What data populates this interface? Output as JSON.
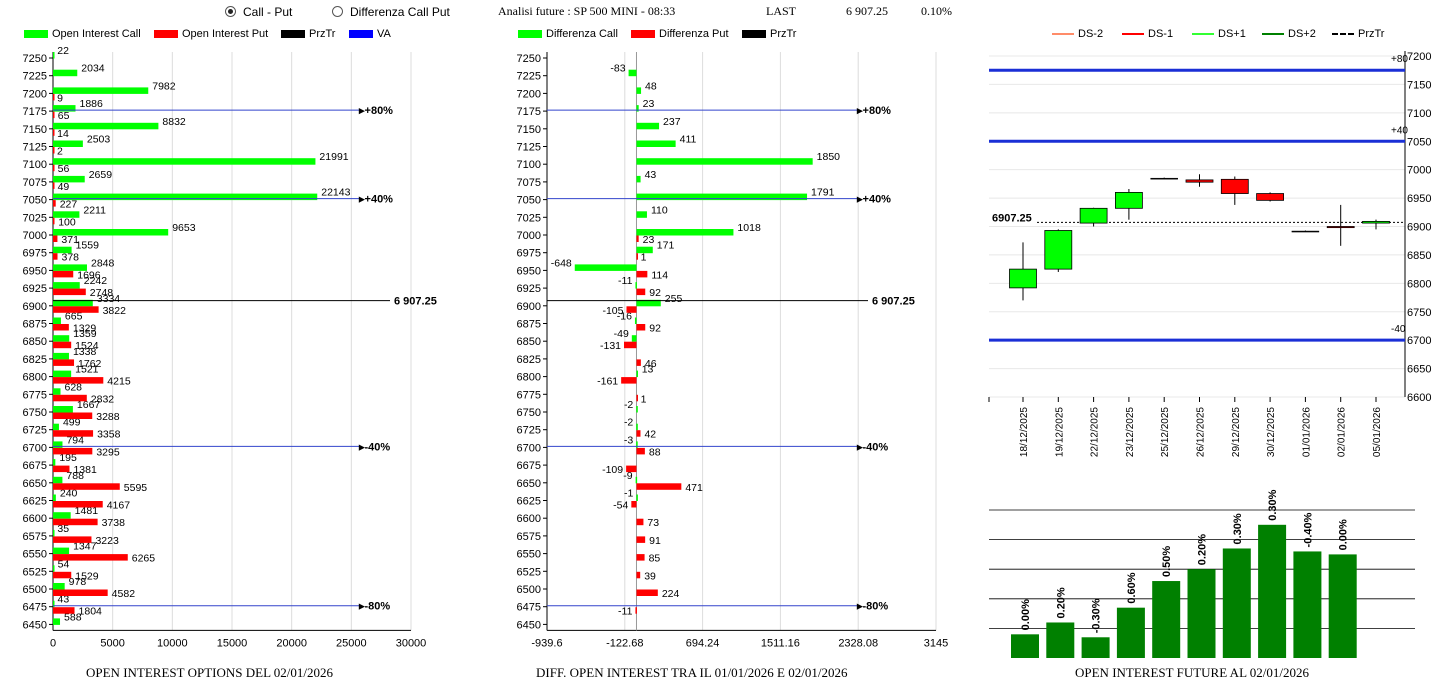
{
  "header": {
    "radio_call_put": "Call - Put",
    "radio_diff": "Differenza Call Put",
    "title": "Analisi future : SP 500 MINI - 08:33",
    "last_label": "LAST",
    "last_value": "6 907.25",
    "change": "0.10%"
  },
  "chart1": {
    "legend": [
      {
        "label": "Open Interest Call",
        "color": "#00ff00"
      },
      {
        "label": "Open Interest Put",
        "color": "#ff0000"
      },
      {
        "label": "PrzTr",
        "color": "#000000"
      },
      {
        "label": "VA",
        "color": "#0000ff"
      }
    ],
    "footer": "OPEN INTEREST OPTIONS DEL 02/01/2026"
  },
  "chart2": {
    "legend": [
      {
        "label": "Differenza Call",
        "color": "#00ff00"
      },
      {
        "label": "Differenza Put",
        "color": "#ff0000"
      },
      {
        "label": "PrzTr",
        "color": "#000000"
      }
    ],
    "footer": "DIFF. OPEN INTEREST TRA IL 01/01/2026 E 02/01/2026"
  },
  "chart3": {
    "legend": [
      {
        "label": "DS-2",
        "color": "#ff8c69",
        "dash": false
      },
      {
        "label": "DS-1",
        "color": "#ff0000",
        "dash": false
      },
      {
        "label": "DS+1",
        "color": "#33ff33",
        "dash": false
      },
      {
        "label": "DS+2",
        "color": "#008000",
        "dash": false
      },
      {
        "label": "PrzTr",
        "color": "#000000",
        "dash": true
      }
    ]
  },
  "chart4": {
    "footer": "OPEN INTEREST FUTURE AL 02/01/2026"
  },
  "chart_data": [
    {
      "type": "bar",
      "title": "OPEN INTEREST OPTIONS DEL 02/01/2026",
      "categories": [
        7250,
        7225,
        7200,
        7175,
        7150,
        7125,
        7100,
        7075,
        7050,
        7025,
        7000,
        6975,
        6950,
        6925,
        6900,
        6875,
        6850,
        6825,
        6800,
        6775,
        6750,
        6725,
        6700,
        6675,
        6650,
        6625,
        6600,
        6575,
        6550,
        6525,
        6500,
        6475,
        6450
      ],
      "series": [
        {
          "name": "Open Interest Call",
          "values": [
            22,
            2034,
            7982,
            1886,
            8832,
            2503,
            21991,
            2659,
            22143,
            2211,
            9653,
            1559,
            2848,
            2242,
            3334,
            665,
            1359,
            1338,
            1521,
            628,
            1667,
            499,
            794,
            195,
            788,
            240,
            1481,
            35,
            1347,
            54,
            978,
            43,
            588
          ]
        },
        {
          "name": "Open Interest Put",
          "values": [
            null,
            null,
            9,
            65,
            14,
            2,
            56,
            49,
            227,
            100,
            371,
            378,
            1696,
            2748,
            3822,
            1329,
            1524,
            1762,
            4215,
            2832,
            3288,
            3358,
            3295,
            1381,
            5595,
            4167,
            3738,
            3223,
            6265,
            1529,
            4582,
            1804,
            null
          ]
        }
      ],
      "xlim": [
        0,
        30000
      ],
      "xticks": [
        "0",
        "5000",
        "10000",
        "15000",
        "20000",
        "25000",
        "30000"
      ],
      "markers": [
        {
          "strike": 7175,
          "label": "+80%"
        },
        {
          "strike": 7050,
          "label": "+40%"
        },
        {
          "strike": 6700,
          "label": "-40%"
        },
        {
          "strike": 6475,
          "label": "-80%"
        }
      ],
      "last_price": {
        "value": 6907.25,
        "label": "6 907.25"
      }
    },
    {
      "type": "bar",
      "title": "DIFF. OPEN INTEREST TRA IL 01/01/2026 E 02/01/2026",
      "categories": [
        7250,
        7225,
        7200,
        7175,
        7150,
        7125,
        7100,
        7075,
        7050,
        7025,
        7000,
        6975,
        6950,
        6925,
        6900,
        6875,
        6850,
        6825,
        6800,
        6775,
        6750,
        6725,
        6700,
        6675,
        6650,
        6625,
        6600,
        6575,
        6550,
        6525,
        6500,
        6475,
        6450
      ],
      "series": [
        {
          "name": "Differenza Call",
          "values": [
            null,
            -83,
            48,
            23,
            237,
            411,
            1850,
            43,
            1791,
            110,
            1018,
            171,
            -648,
            -11,
            255,
            -16,
            -49,
            null,
            13,
            null,
            -2,
            -2,
            -3,
            null,
            -9,
            -1,
            null,
            null,
            null,
            null,
            null,
            null,
            null
          ]
        },
        {
          "name": "Differenza Put",
          "values": [
            null,
            null,
            null,
            null,
            null,
            null,
            null,
            null,
            null,
            null,
            23,
            1,
            114,
            92,
            -105,
            92,
            -131,
            46,
            -161,
            1,
            null,
            42,
            88,
            -109,
            471,
            -54,
            73,
            91,
            85,
            39,
            224,
            -11,
            null
          ]
        }
      ],
      "xlim": [
        -939.6,
        3145
      ],
      "xticks": [
        "-939.6",
        "-122.68",
        "694.24",
        "1511.16",
        "2328.08",
        "3145"
      ],
      "markers": [
        {
          "strike": 7175,
          "label": "+80%"
        },
        {
          "strike": 7050,
          "label": "+40%"
        },
        {
          "strike": 6700,
          "label": "-40%"
        },
        {
          "strike": 6475,
          "label": "-80%"
        }
      ],
      "last_price": {
        "value": 6907.25,
        "label": "6 907.25"
      }
    },
    {
      "type": "candlestick",
      "dates": [
        "18/12/2025",
        "19/12/2025",
        "22/12/2025",
        "23/12/2025",
        "25/12/2025",
        "26/12/2025",
        "29/12/2025",
        "30/12/2025",
        "01/01/2026",
        "02/01/2026",
        "05/01/2026"
      ],
      "ohlc": [
        [
          6792,
          6872,
          6770,
          6825
        ],
        [
          6825,
          6895,
          6820,
          6893
        ],
        [
          6906,
          6933,
          6900,
          6932
        ],
        [
          6932,
          6966,
          6912,
          6960
        ],
        [
          6985,
          6986,
          6984,
          6985
        ],
        [
          6982,
          6992,
          6970,
          6978
        ],
        [
          6983,
          6988,
          6938,
          6958
        ],
        [
          6958,
          6960,
          6944,
          6946
        ],
        [
          6892,
          6893,
          6891,
          6892
        ],
        [
          6900,
          6938,
          6866,
          6898
        ],
        [
          6906,
          6912,
          6895,
          6909
        ]
      ],
      "ylim": [
        6600,
        7200
      ],
      "yticks": [
        "6600",
        "6650",
        "6700",
        "6750",
        "6800",
        "6850",
        "6900",
        "6950",
        "7000",
        "7050",
        "7100",
        "7150",
        "7200"
      ],
      "hlines": [
        {
          "value": 7175,
          "label": "+80"
        },
        {
          "value": 7050,
          "label": "+40"
        },
        {
          "value": 6700,
          "label": "-40"
        }
      ],
      "last_price": {
        "value": 6907.25,
        "label": "6907.25"
      }
    },
    {
      "type": "bar",
      "title": "OPEN INTEREST FUTURE AL 02/01/2026",
      "values": [
        0.8,
        1.2,
        0.7,
        1.7,
        2.6,
        3.0,
        3.7,
        4.5,
        3.6,
        3.5
      ],
      "labels": [
        "0.00%",
        "0.20%",
        "-0.30%",
        "0.60%",
        "0.50%",
        "0.20%",
        "0.30%",
        "0.30%",
        "-0.40%",
        "0.00%"
      ],
      "ylim": [
        0,
        5
      ],
      "color": "#008000"
    }
  ]
}
